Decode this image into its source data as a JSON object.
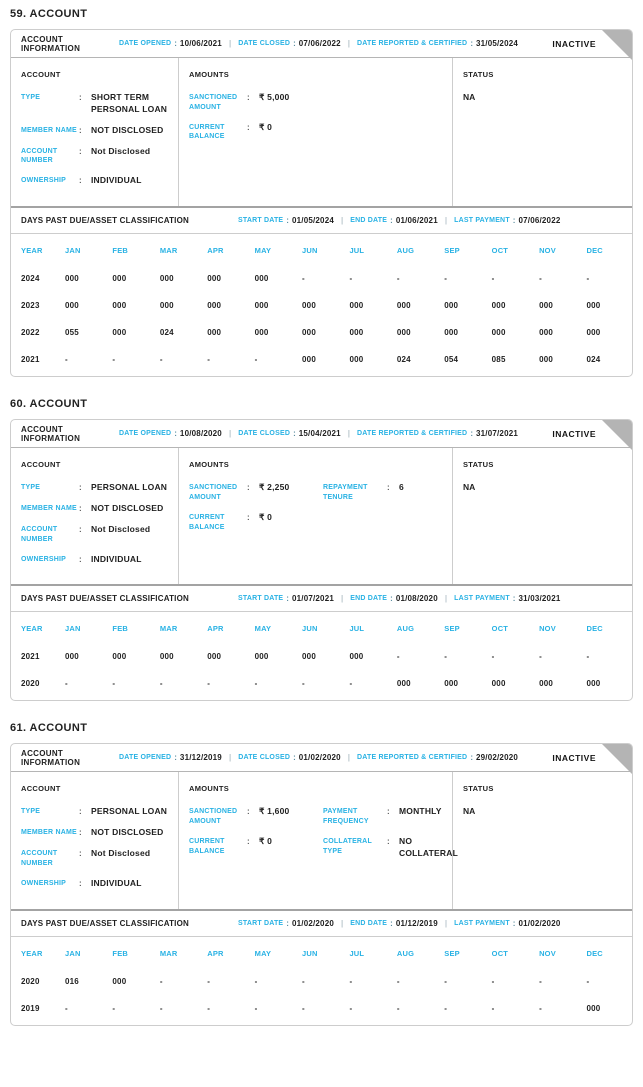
{
  "labels": {
    "account_information": "ACCOUNT INFORMATION",
    "date_opened": "DATE OPENED",
    "date_closed": "DATE CLOSED",
    "date_reported_certified": "DATE REPORTED & CERTIFIED",
    "account": "ACCOUNT",
    "amounts": "AMOUNTS",
    "status": "STATUS",
    "dpd_title": "DAYS PAST DUE/ASSET CLASSIFICATION",
    "start_date": "START DATE",
    "end_date": "END DATE",
    "last_payment": "LAST PAYMENT",
    "year": "YEAR",
    "colon": ":",
    "pipe": "|",
    "close_icon": "×"
  },
  "colors": {
    "accent_cyan": "#29b2e4",
    "text_dark": "#1f1f1f",
    "corner_gray": "#b4b4b4"
  },
  "months": [
    "JAN",
    "FEB",
    "MAR",
    "APR",
    "MAY",
    "JUN",
    "JUL",
    "AUG",
    "SEP",
    "OCT",
    "NOV",
    "DEC"
  ],
  "accounts": [
    {
      "title": "59. ACCOUNT",
      "status_badge": "INACTIVE",
      "date_opened": "10/06/2021",
      "date_closed": "07/06/2022",
      "date_reported_certified": "31/05/2024",
      "account_fields": [
        {
          "label": "TYPE",
          "value": "SHORT TERM PERSONAL LOAN"
        },
        {
          "label": "MEMBER NAME",
          "value": "NOT DISCLOSED"
        },
        {
          "label": "ACCOUNT NUMBER",
          "value": "Not Disclosed"
        },
        {
          "label": "OWNERSHIP",
          "value": "INDIVIDUAL"
        }
      ],
      "amount_fields_left": [
        {
          "label": "SANCTIONED AMOUNT",
          "value": "₹ 5,000"
        },
        {
          "label": "CURRENT BALANCE",
          "value": "₹ 0"
        }
      ],
      "amount_fields_right": [],
      "status_value": "NA",
      "dpd": {
        "start_date": "01/05/2024",
        "end_date": "01/06/2021",
        "last_payment": "07/06/2022",
        "rows": [
          {
            "year": "2024",
            "values": [
              "000",
              "000",
              "000",
              "000",
              "000",
              "-",
              "-",
              "-",
              "-",
              "-",
              "-",
              "-"
            ]
          },
          {
            "year": "2023",
            "values": [
              "000",
              "000",
              "000",
              "000",
              "000",
              "000",
              "000",
              "000",
              "000",
              "000",
              "000",
              "000"
            ]
          },
          {
            "year": "2022",
            "values": [
              "055",
              "000",
              "024",
              "000",
              "000",
              "000",
              "000",
              "000",
              "000",
              "000",
              "000",
              "000"
            ]
          },
          {
            "year": "2021",
            "values": [
              "-",
              "-",
              "-",
              "-",
              "-",
              "000",
              "000",
              "024",
              "054",
              "085",
              "000",
              "024"
            ]
          }
        ]
      }
    },
    {
      "title": "60. ACCOUNT",
      "status_badge": "INACTIVE",
      "date_opened": "10/08/2020",
      "date_closed": "15/04/2021",
      "date_reported_certified": "31/07/2021",
      "account_fields": [
        {
          "label": "TYPE",
          "value": "PERSONAL LOAN"
        },
        {
          "label": "MEMBER NAME",
          "value": "NOT DISCLOSED"
        },
        {
          "label": "ACCOUNT NUMBER",
          "value": "Not Disclosed"
        },
        {
          "label": "OWNERSHIP",
          "value": "INDIVIDUAL"
        }
      ],
      "amount_fields_left": [
        {
          "label": "SANCTIONED AMOUNT",
          "value": "₹ 2,250"
        },
        {
          "label": "CURRENT BALANCE",
          "value": "₹ 0"
        }
      ],
      "amount_fields_right": [
        {
          "label": "REPAYMENT TENURE",
          "value": "6"
        }
      ],
      "status_value": "NA",
      "dpd": {
        "start_date": "01/07/2021",
        "end_date": "01/08/2020",
        "last_payment": "31/03/2021",
        "rows": [
          {
            "year": "2021",
            "values": [
              "000",
              "000",
              "000",
              "000",
              "000",
              "000",
              "000",
              "-",
              "-",
              "-",
              "-",
              "-"
            ]
          },
          {
            "year": "2020",
            "values": [
              "-",
              "-",
              "-",
              "-",
              "-",
              "-",
              "-",
              "000",
              "000",
              "000",
              "000",
              "000"
            ]
          }
        ]
      }
    },
    {
      "title": "61. ACCOUNT",
      "status_badge": "INACTIVE",
      "date_opened": "31/12/2019",
      "date_closed": "01/02/2020",
      "date_reported_certified": "29/02/2020",
      "account_fields": [
        {
          "label": "TYPE",
          "value": "PERSONAL LOAN"
        },
        {
          "label": "MEMBER NAME",
          "value": "NOT DISCLOSED"
        },
        {
          "label": "ACCOUNT NUMBER",
          "value": "Not Disclosed"
        },
        {
          "label": "OWNERSHIP",
          "value": "INDIVIDUAL"
        }
      ],
      "amount_fields_left": [
        {
          "label": "SANCTIONED AMOUNT",
          "value": "₹ 1,600"
        },
        {
          "label": "CURRENT BALANCE",
          "value": "₹ 0"
        }
      ],
      "amount_fields_right": [
        {
          "label": "PAYMENT FREQUENCY",
          "value": "MONTHLY"
        },
        {
          "label": "COLLATERAL TYPE",
          "value": "NO COLLATERAL"
        }
      ],
      "status_value": "NA",
      "dpd": {
        "start_date": "01/02/2020",
        "end_date": "01/12/2019",
        "last_payment": "01/02/2020",
        "rows": [
          {
            "year": "2020",
            "values": [
              "016",
              "000",
              "-",
              "-",
              "-",
              "-",
              "-",
              "-",
              "-",
              "-",
              "-",
              "-"
            ]
          },
          {
            "year": "2019",
            "values": [
              "-",
              "-",
              "-",
              "-",
              "-",
              "-",
              "-",
              "-",
              "-",
              "-",
              "-",
              "000"
            ]
          }
        ]
      }
    }
  ]
}
